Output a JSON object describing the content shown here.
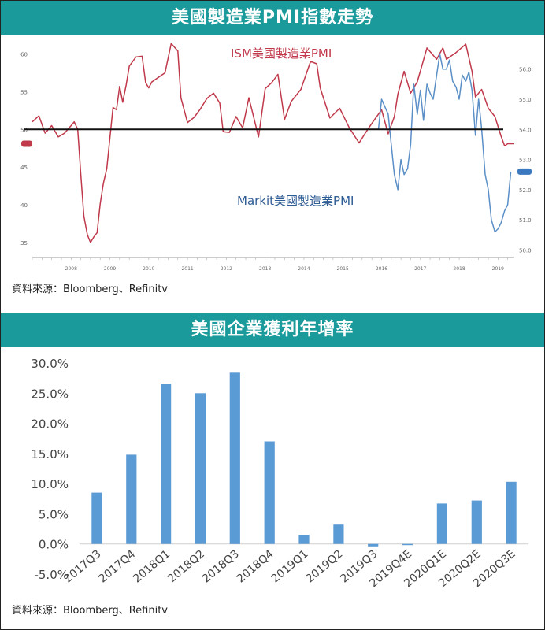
{
  "panel1": {
    "title": "美國製造業PMI指數走勢",
    "source": "資料來源：Bloomberg、Refinitv"
  },
  "panel2": {
    "title": "美國企業獲利年增率",
    "source": "資料來源：Bloomberg、Refinitv"
  },
  "chart_data": [
    {
      "type": "line",
      "title": "美國製造業PMI指數走勢",
      "x_range": [
        2007.5,
        2019.92
      ],
      "x_ticks": [
        "2008",
        "2009",
        "2010",
        "2011",
        "2012",
        "2013",
        "2014",
        "2015",
        "2016",
        "2017",
        "2018",
        "2019"
      ],
      "left_axis": {
        "ticks": [
          35,
          40,
          45,
          50,
          55,
          60
        ],
        "range": [
          33,
          61
        ]
      },
      "right_axis": {
        "ticks": [
          50,
          51,
          52,
          53,
          54,
          55,
          56
        ],
        "range": [
          49.75,
          56.75
        ]
      },
      "reference_line": {
        "axis": "left",
        "value": 50
      },
      "series": [
        {
          "name": "ISM美國製造業PMI",
          "axis": "left",
          "color": "#c0394b",
          "points": [
            [
              2007.5,
              51.0
            ],
            [
              2007.67,
              51.8
            ],
            [
              2007.83,
              49.5
            ],
            [
              2008.0,
              50.5
            ],
            [
              2008.17,
              49.0
            ],
            [
              2008.33,
              49.5
            ],
            [
              2008.5,
              50.5
            ],
            [
              2008.58,
              51.0
            ],
            [
              2008.67,
              50.0
            ],
            [
              2008.75,
              44.0
            ],
            [
              2008.83,
              38.5
            ],
            [
              2008.92,
              36.0
            ],
            [
              2009.0,
              35.0
            ],
            [
              2009.08,
              35.7
            ],
            [
              2009.17,
              36.3
            ],
            [
              2009.25,
              40.1
            ],
            [
              2009.33,
              42.8
            ],
            [
              2009.42,
              44.8
            ],
            [
              2009.5,
              48.9
            ],
            [
              2009.58,
              52.9
            ],
            [
              2009.67,
              52.6
            ],
            [
              2009.75,
              55.7
            ],
            [
              2009.83,
              53.6
            ],
            [
              2009.92,
              55.9
            ],
            [
              2010.0,
              58.4
            ],
            [
              2010.17,
              59.6
            ],
            [
              2010.33,
              59.7
            ],
            [
              2010.42,
              56.2
            ],
            [
              2010.5,
              55.5
            ],
            [
              2010.58,
              56.3
            ],
            [
              2010.75,
              56.9
            ],
            [
              2010.92,
              57.5
            ],
            [
              2011.08,
              61.4
            ],
            [
              2011.25,
              60.4
            ],
            [
              2011.33,
              54.2
            ],
            [
              2011.5,
              50.9
            ],
            [
              2011.67,
              51.6
            ],
            [
              2011.83,
              52.7
            ],
            [
              2012.0,
              54.1
            ],
            [
              2012.17,
              54.8
            ],
            [
              2012.33,
              53.5
            ],
            [
              2012.42,
              49.7
            ],
            [
              2012.58,
              49.6
            ],
            [
              2012.75,
              51.7
            ],
            [
              2012.92,
              50.2
            ],
            [
              2013.08,
              54.2
            ],
            [
              2013.33,
              49.0
            ],
            [
              2013.5,
              55.4
            ],
            [
              2013.67,
              56.2
            ],
            [
              2013.83,
              57.3
            ],
            [
              2014.0,
              51.3
            ],
            [
              2014.17,
              53.7
            ],
            [
              2014.42,
              55.3
            ],
            [
              2014.67,
              59.0
            ],
            [
              2014.83,
              58.7
            ],
            [
              2014.92,
              55.5
            ],
            [
              2015.17,
              51.5
            ],
            [
              2015.42,
              52.8
            ],
            [
              2015.67,
              50.2
            ],
            [
              2015.92,
              48.2
            ],
            [
              2016.08,
              49.5
            ],
            [
              2016.25,
              50.8
            ],
            [
              2016.5,
              52.6
            ],
            [
              2016.67,
              49.4
            ],
            [
              2016.83,
              51.7
            ],
            [
              2016.92,
              54.7
            ],
            [
              2017.08,
              57.7
            ],
            [
              2017.25,
              54.8
            ],
            [
              2017.42,
              56.3
            ],
            [
              2017.67,
              60.8
            ],
            [
              2017.92,
              59.3
            ],
            [
              2018.08,
              60.8
            ],
            [
              2018.17,
              59.3
            ],
            [
              2018.42,
              60.2
            ],
            [
              2018.67,
              61.3
            ],
            [
              2018.83,
              57.7
            ],
            [
              2018.92,
              54.3
            ],
            [
              2019.08,
              55.3
            ],
            [
              2019.25,
              52.8
            ],
            [
              2019.42,
              51.7
            ],
            [
              2019.58,
              49.1
            ],
            [
              2019.67,
              47.8
            ],
            [
              2019.75,
              48.1
            ],
            [
              2019.92,
              48.1
            ]
          ]
        },
        {
          "name": "Markit美國製造業PMI",
          "axis": "right",
          "color": "#5b8fc7",
          "points": [
            [
              2016.42,
              54.0
            ],
            [
              2016.5,
              55.0
            ],
            [
              2016.67,
              54.5
            ],
            [
              2016.75,
              53.5
            ],
            [
              2016.83,
              52.5
            ],
            [
              2016.92,
              52.0
            ],
            [
              2017.0,
              53.0
            ],
            [
              2017.08,
              52.5
            ],
            [
              2017.17,
              52.7
            ],
            [
              2017.25,
              53.5
            ],
            [
              2017.33,
              55.5
            ],
            [
              2017.42,
              54.5
            ],
            [
              2017.5,
              55.3
            ],
            [
              2017.58,
              54.3
            ],
            [
              2017.67,
              55.5
            ],
            [
              2017.75,
              55.2
            ],
            [
              2017.83,
              55.0
            ],
            [
              2017.92,
              55.8
            ],
            [
              2018.0,
              56.5
            ],
            [
              2018.08,
              56.0
            ],
            [
              2018.17,
              56.0
            ],
            [
              2018.25,
              56.3
            ],
            [
              2018.33,
              55.6
            ],
            [
              2018.42,
              55.4
            ],
            [
              2018.5,
              55.0
            ],
            [
              2018.58,
              55.8
            ],
            [
              2018.67,
              55.6
            ],
            [
              2018.75,
              55.9
            ],
            [
              2018.83,
              55.3
            ],
            [
              2018.92,
              53.8
            ],
            [
              2019.0,
              55.0
            ],
            [
              2019.08,
              54.0
            ],
            [
              2019.17,
              52.5
            ],
            [
              2019.25,
              52.0
            ],
            [
              2019.33,
              51.0
            ],
            [
              2019.42,
              50.6
            ],
            [
              2019.5,
              50.7
            ],
            [
              2019.58,
              50.9
            ],
            [
              2019.67,
              51.3
            ],
            [
              2019.75,
              51.5
            ],
            [
              2019.83,
              52.6
            ]
          ]
        }
      ],
      "labels": {
        "ism": "ISM美國製造業PMI",
        "markit": "Markit美國製造業PMI"
      }
    },
    {
      "type": "bar",
      "title": "美國企業獲利年增率",
      "categories": [
        "2017Q3",
        "2017Q4",
        "2018Q1",
        "2018Q2",
        "2018Q3",
        "2018Q4",
        "2019Q1",
        "2019Q2",
        "2019Q3",
        "2019Q4E",
        "2020Q1E",
        "2020Q2E",
        "2020Q3E"
      ],
      "values": [
        8.5,
        14.8,
        26.6,
        25.0,
        28.4,
        17.0,
        1.5,
        3.2,
        -0.4,
        -0.1,
        6.7,
        7.2,
        10.3
      ],
      "ylim": [
        -5,
        30
      ],
      "y_ticks": [
        "-5.0%",
        "0.0%",
        "5.0%",
        "10.0%",
        "15.0%",
        "20.0%",
        "25.0%",
        "30.0%"
      ],
      "color": "#5b9bd5",
      "grid": false
    }
  ]
}
